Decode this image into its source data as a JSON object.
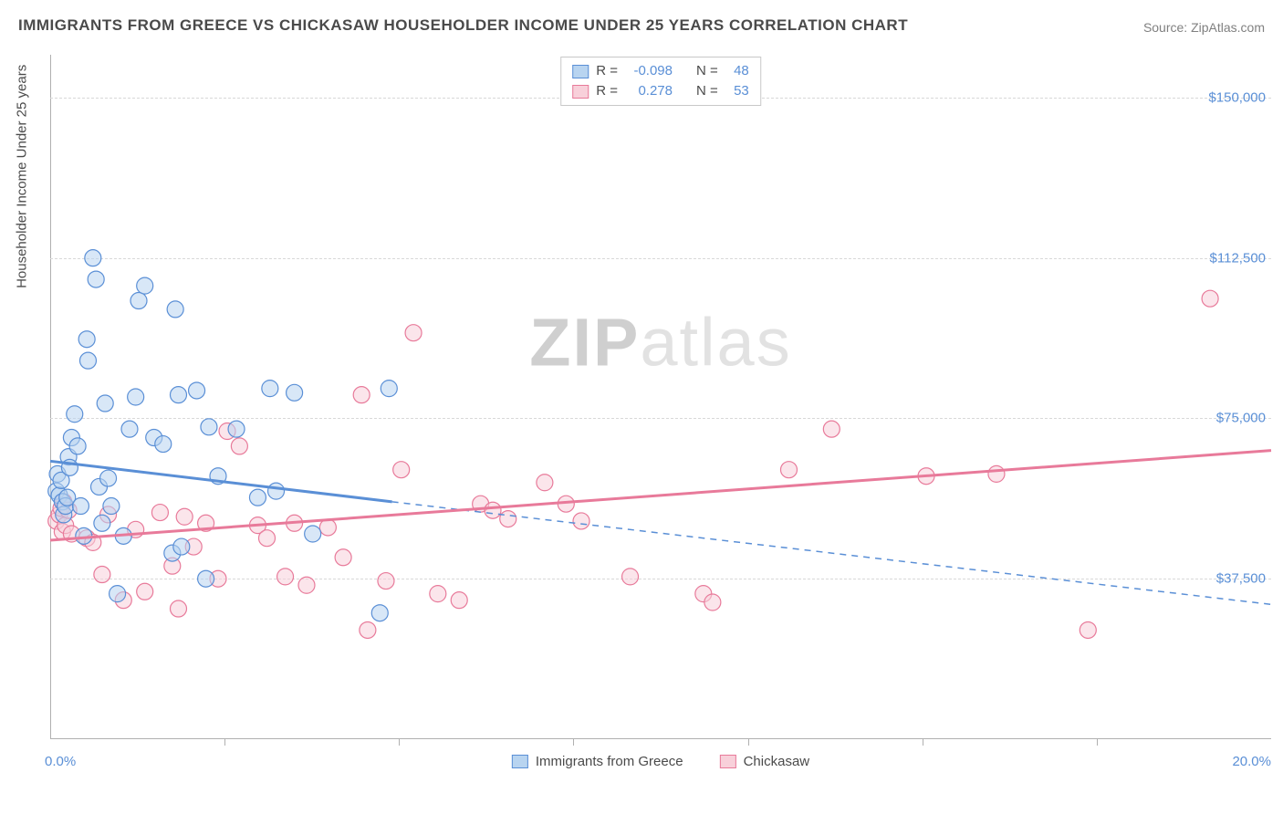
{
  "title": "IMMIGRANTS FROM GREECE VS CHICKASAW HOUSEHOLDER INCOME UNDER 25 YEARS CORRELATION CHART",
  "source": "Source: ZipAtlas.com",
  "y_axis_title": "Householder Income Under 25 years",
  "watermark_z": "ZIP",
  "watermark_rest": "atlas",
  "chart": {
    "type": "scatter",
    "xlim": [
      0.0,
      20.0
    ],
    "ylim": [
      0,
      160000
    ],
    "x_ticks": [
      0.0,
      20.0
    ],
    "x_tick_minor": [
      2.86,
      5.71,
      8.57,
      11.43,
      14.29,
      17.14
    ],
    "x_tick_labels": [
      "0.0%",
      "20.0%"
    ],
    "y_ticks": [
      37500,
      75000,
      112500,
      150000
    ],
    "y_tick_labels": [
      "$37,500",
      "$75,000",
      "$112,500",
      "$150,000"
    ],
    "background_color": "#ffffff",
    "grid_color": "#d8d8d8",
    "axis_color": "#b0b0b0",
    "series": [
      {
        "name": "Immigrants from Greece",
        "color_fill": "#b8d4f0",
        "color_stroke": "#5a8fd6",
        "fill_opacity": 0.55,
        "marker_radius": 9,
        "R": "-0.098",
        "N": "48",
        "regression": {
          "x1": 0,
          "y1": 65000,
          "x2": 5.6,
          "y2": 55500,
          "x2d": 20,
          "y2d": 31500
        },
        "points": [
          [
            0.1,
            58000
          ],
          [
            0.12,
            62000
          ],
          [
            0.15,
            57000
          ],
          [
            0.18,
            60500
          ],
          [
            0.2,
            55500
          ],
          [
            0.22,
            52500
          ],
          [
            0.25,
            54500
          ],
          [
            0.28,
            56500
          ],
          [
            0.3,
            66000
          ],
          [
            0.32,
            63500
          ],
          [
            0.35,
            70500
          ],
          [
            0.4,
            76000
          ],
          [
            0.45,
            68500
          ],
          [
            0.5,
            54500
          ],
          [
            0.55,
            47500
          ],
          [
            0.6,
            93500
          ],
          [
            0.62,
            88500
          ],
          [
            0.7,
            112500
          ],
          [
            0.75,
            107500
          ],
          [
            0.8,
            59000
          ],
          [
            0.85,
            50500
          ],
          [
            0.9,
            78500
          ],
          [
            0.95,
            61000
          ],
          [
            1.0,
            54500
          ],
          [
            1.1,
            34000
          ],
          [
            1.2,
            47500
          ],
          [
            1.3,
            72500
          ],
          [
            1.4,
            80000
          ],
          [
            1.45,
            102500
          ],
          [
            1.55,
            106000
          ],
          [
            1.7,
            70500
          ],
          [
            1.85,
            69000
          ],
          [
            2.0,
            43500
          ],
          [
            2.05,
            100500
          ],
          [
            2.1,
            80500
          ],
          [
            2.15,
            45000
          ],
          [
            2.4,
            81500
          ],
          [
            2.55,
            37500
          ],
          [
            2.6,
            73000
          ],
          [
            2.75,
            61500
          ],
          [
            3.05,
            72500
          ],
          [
            3.4,
            56500
          ],
          [
            3.6,
            82000
          ],
          [
            3.7,
            58000
          ],
          [
            4.0,
            81000
          ],
          [
            4.3,
            48000
          ],
          [
            5.4,
            29500
          ],
          [
            5.55,
            82000
          ]
        ]
      },
      {
        "name": "Chickasaw",
        "color_fill": "#f8d0da",
        "color_stroke": "#e87a9a",
        "fill_opacity": 0.55,
        "marker_radius": 9,
        "R": "0.278",
        "N": "53",
        "regression": {
          "x1": 0,
          "y1": 46500,
          "x2": 20,
          "y2": 67500
        },
        "points": [
          [
            0.1,
            51000
          ],
          [
            0.15,
            52500
          ],
          [
            0.18,
            54000
          ],
          [
            0.2,
            48500
          ],
          [
            0.22,
            55500
          ],
          [
            0.25,
            50000
          ],
          [
            0.3,
            53500
          ],
          [
            0.35,
            48000
          ],
          [
            0.6,
            47000
          ],
          [
            0.7,
            46000
          ],
          [
            0.85,
            38500
          ],
          [
            0.95,
            52500
          ],
          [
            1.2,
            32500
          ],
          [
            1.4,
            49000
          ],
          [
            1.55,
            34500
          ],
          [
            1.8,
            53000
          ],
          [
            2.0,
            40500
          ],
          [
            2.1,
            30500
          ],
          [
            2.2,
            52000
          ],
          [
            2.35,
            45000
          ],
          [
            2.55,
            50500
          ],
          [
            2.75,
            37500
          ],
          [
            2.9,
            72000
          ],
          [
            3.1,
            68500
          ],
          [
            3.4,
            50000
          ],
          [
            3.55,
            47000
          ],
          [
            3.85,
            38000
          ],
          [
            4.0,
            50500
          ],
          [
            4.2,
            36000
          ],
          [
            4.55,
            49500
          ],
          [
            4.8,
            42500
          ],
          [
            5.1,
            80500
          ],
          [
            5.2,
            25500
          ],
          [
            5.5,
            37000
          ],
          [
            5.75,
            63000
          ],
          [
            5.95,
            95000
          ],
          [
            6.35,
            34000
          ],
          [
            6.7,
            32500
          ],
          [
            7.05,
            55000
          ],
          [
            7.25,
            53500
          ],
          [
            7.5,
            51500
          ],
          [
            8.1,
            60000
          ],
          [
            8.45,
            55000
          ],
          [
            8.7,
            51000
          ],
          [
            9.5,
            38000
          ],
          [
            10.7,
            34000
          ],
          [
            10.85,
            32000
          ],
          [
            12.1,
            63000
          ],
          [
            12.8,
            72500
          ],
          [
            14.35,
            61500
          ],
          [
            15.5,
            62000
          ],
          [
            17.0,
            25500
          ],
          [
            19.0,
            103000
          ]
        ]
      }
    ]
  },
  "legend": {
    "series1": "Immigrants from Greece",
    "series2": "Chickasaw"
  },
  "stats": {
    "r_label": "R =",
    "n_label": "N ="
  }
}
